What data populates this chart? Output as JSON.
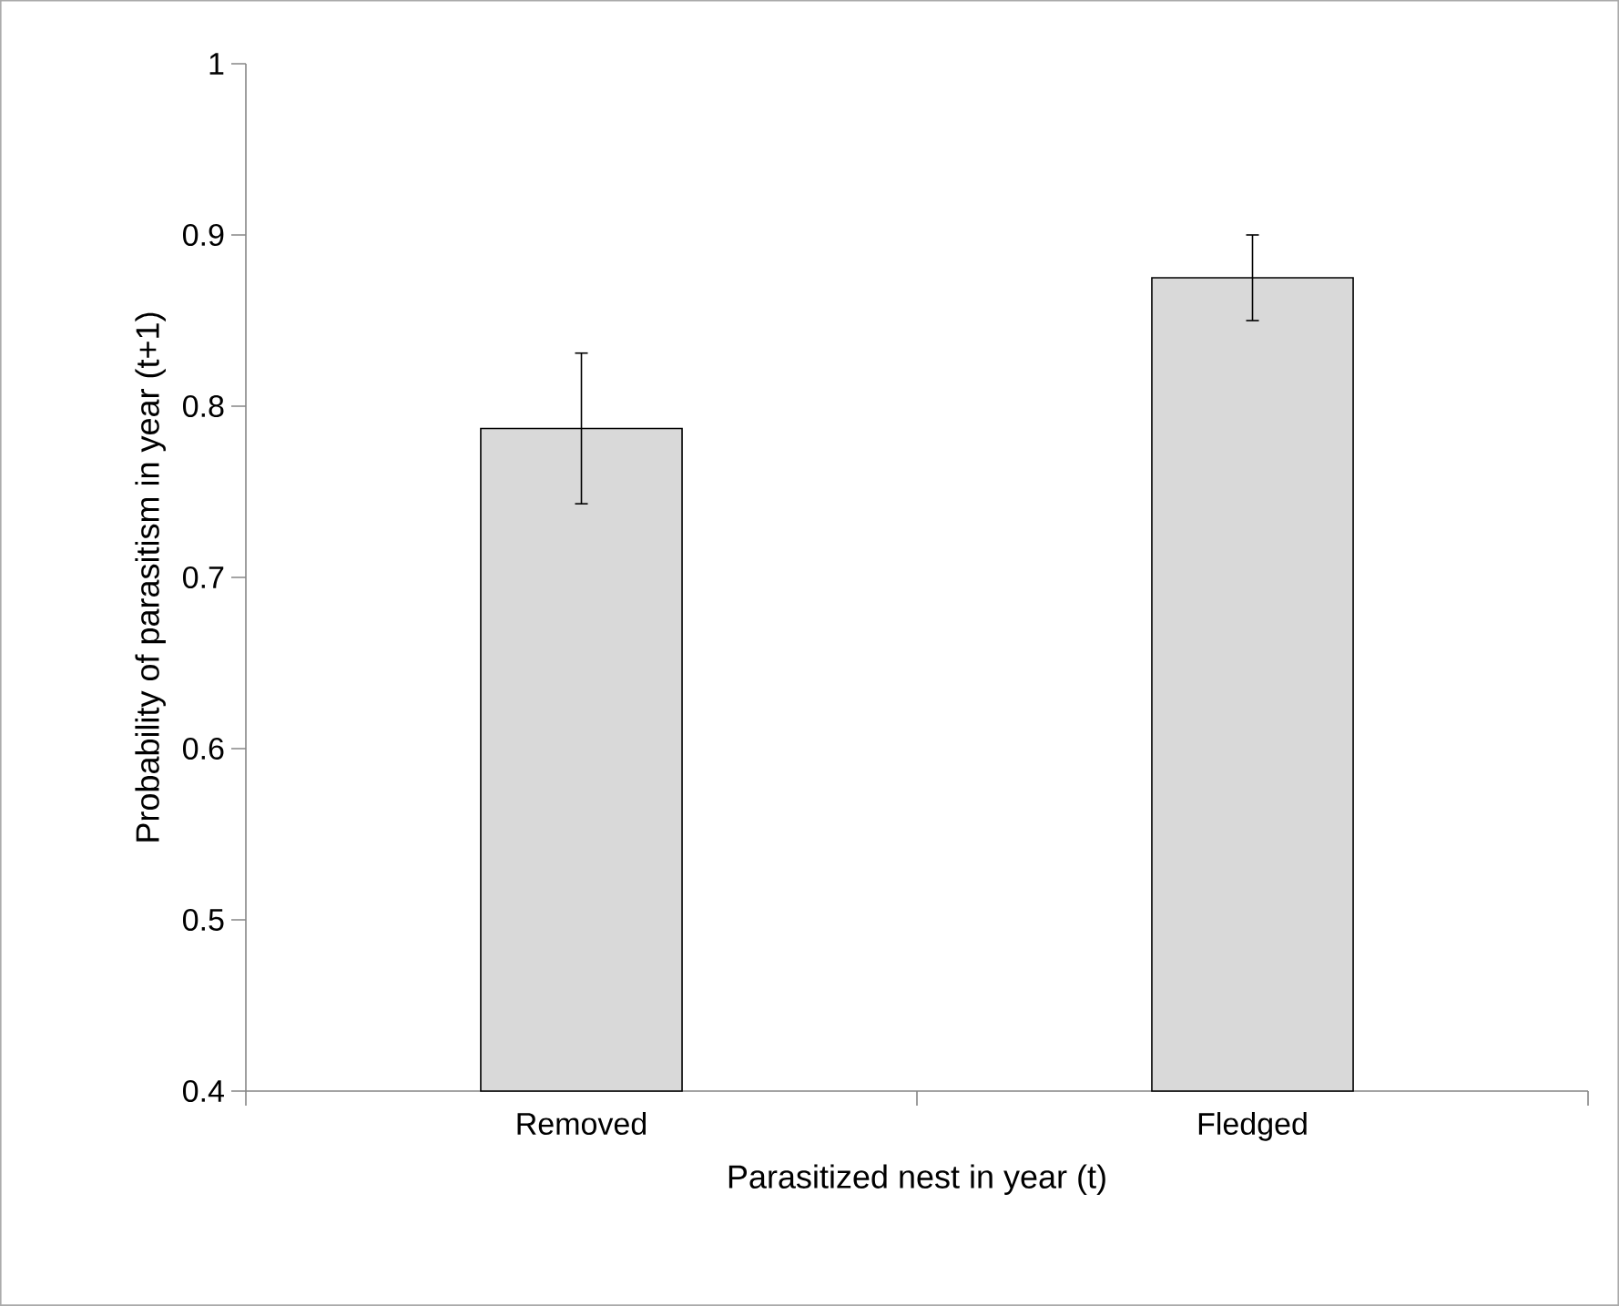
{
  "chart_data": {
    "type": "bar",
    "xlabel": "Parasitized nest in year (t)",
    "ylabel": "Probability of parasitism in year (t+1)",
    "categories": [
      "Removed",
      "Fledged"
    ],
    "values": [
      0.787,
      0.875
    ],
    "errors": [
      0.044,
      0.025
    ],
    "color": "#d9d9d9",
    "ylim": [
      0.4,
      1
    ],
    "yticks": [
      0.4,
      0.5,
      0.6,
      0.7,
      0.8,
      0.9,
      1
    ]
  }
}
